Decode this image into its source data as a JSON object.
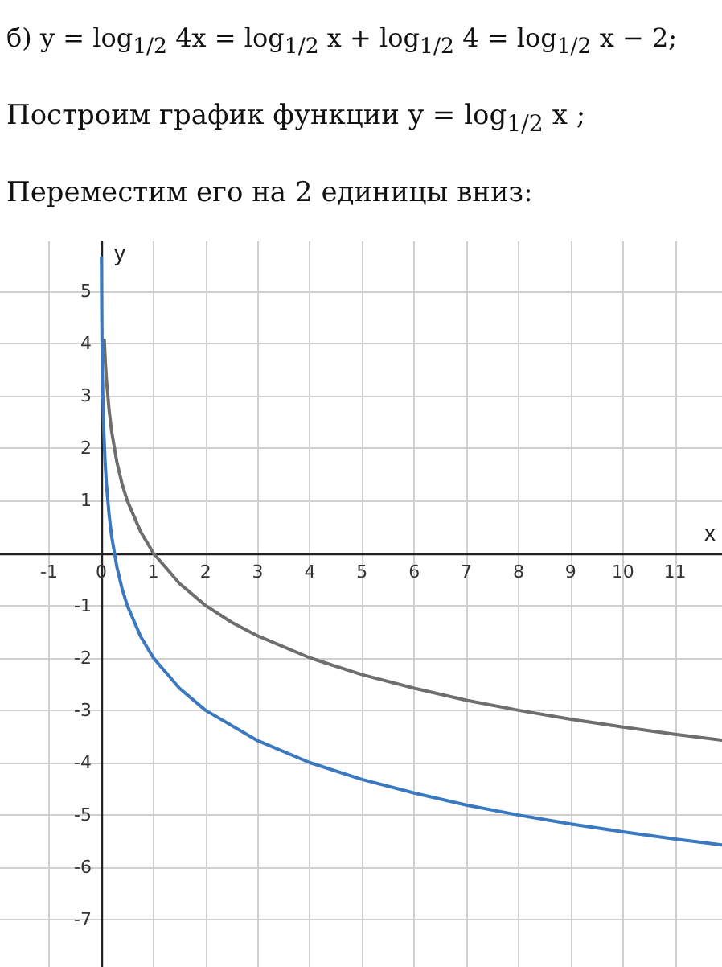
{
  "chart_data": {
    "type": "line",
    "annotations": [
      "б) y = log$_{1/2}$ 4x = log$_{1/2}$ x + log$_{1/2}$ 4 = log$_{1/2}$ x − 2;",
      "Построим график функции y = log$_{1/2}$ x ;",
      "Переместим его на 2 единицы вниз:"
    ],
    "xlabel": "x",
    "ylabel": "y",
    "series": [
      {
        "color": "#6e6e6e",
        "x": [
          0.06,
          0.08,
          0.1,
          0.15,
          0.2,
          0.3,
          0.4,
          0.5,
          0.75,
          1,
          1.5,
          2,
          2.5,
          3,
          4,
          5,
          6,
          7,
          8,
          9,
          10,
          11,
          11.9
        ],
        "values": [
          4.06,
          3.64,
          3.32,
          2.74,
          2.32,
          1.74,
          1.32,
          1,
          0.42,
          0,
          -0.58,
          -1,
          -1.32,
          -1.58,
          -2,
          -2.32,
          -2.58,
          -2.81,
          -3,
          -3.17,
          -3.32,
          -3.46,
          -3.57
        ]
      },
      {
        "color": "#3a78c0",
        "x": [
          0.005,
          0.008,
          0.01,
          0.015,
          0.02,
          0.03,
          0.05,
          0.075,
          0.1,
          0.15,
          0.2,
          0.3,
          0.4,
          0.5,
          0.75,
          1,
          1.5,
          2,
          3,
          4,
          5,
          6,
          7,
          8,
          9,
          10,
          11,
          11.9
        ],
        "values": [
          5.64,
          4.97,
          4.64,
          4.06,
          3.64,
          3.06,
          2.32,
          1.74,
          1.32,
          0.74,
          0.32,
          -0.26,
          -0.68,
          -1,
          -1.58,
          -2,
          -2.58,
          -3,
          -3.58,
          -4,
          -4.32,
          -4.58,
          -4.81,
          -5,
          -5.17,
          -5.32,
          -5.46,
          -5.57
        ]
      }
    ],
    "xlim": [
      -1.94,
      11.9
    ],
    "ylim": [
      -7.9,
      5.95
    ],
    "xticks": [
      -1,
      0,
      1,
      2,
      3,
      4,
      5,
      6,
      7,
      8,
      9,
      10,
      11
    ],
    "yticks": [
      -7,
      -6,
      -5,
      -4,
      -3,
      -2,
      -1,
      {
        "value": 0,
        "label": null
      },
      1,
      2,
      3,
      4,
      5
    ],
    "grid": true,
    "marker": "none",
    "line_style": "solid"
  }
}
